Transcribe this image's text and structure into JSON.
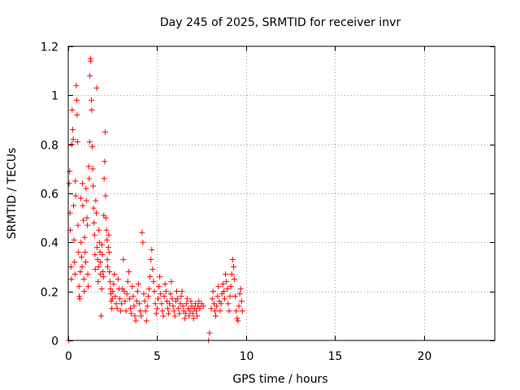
{
  "chart_data": {
    "type": "scatter",
    "title": "Day 245 of 2025, SRMTID for receiver invr",
    "xlabel": "GPS time / hours",
    "ylabel": "SRMTID / TECUs",
    "xlim": [
      0,
      24
    ],
    "ylim": [
      0,
      1.2
    ],
    "x_ticks": [
      0,
      5,
      10,
      15,
      20
    ],
    "x_tick_labels": [
      "0",
      "5",
      "10",
      "15",
      "20"
    ],
    "y_ticks": [
      0,
      0.2,
      0.4,
      0.6,
      0.8,
      1.0,
      1.2
    ],
    "y_tick_labels": [
      "0",
      "0.2",
      "0.4",
      "0.6",
      "0.8",
      "1",
      "1.2"
    ],
    "grid": true,
    "marker": "+",
    "color": "#ff0000",
    "series": [
      {
        "name": "SRMTID",
        "points": [
          [
            0.02,
            0.0
          ],
          [
            0.05,
            0.64
          ],
          [
            0.08,
            0.69
          ],
          [
            0.1,
            0.52
          ],
          [
            0.12,
            0.45
          ],
          [
            0.15,
            0.3
          ],
          [
            0.18,
            0.25
          ],
          [
            0.2,
            0.8
          ],
          [
            0.22,
            0.94
          ],
          [
            0.25,
            0.86
          ],
          [
            0.28,
            0.82
          ],
          [
            0.3,
            0.55
          ],
          [
            0.32,
            0.41
          ],
          [
            0.35,
            0.32
          ],
          [
            0.38,
            0.27
          ],
          [
            0.4,
            0.65
          ],
          [
            0.42,
            0.59
          ],
          [
            0.45,
            1.04
          ],
          [
            0.48,
            0.98
          ],
          [
            0.5,
            0.92
          ],
          [
            0.52,
            0.81
          ],
          [
            0.55,
            0.47
          ],
          [
            0.58,
            0.36
          ],
          [
            0.6,
            0.22
          ],
          [
            0.62,
            0.18
          ],
          [
            0.65,
            0.17
          ],
          [
            0.68,
            0.28
          ],
          [
            0.7,
            0.58
          ],
          [
            0.72,
            0.4
          ],
          [
            0.75,
            0.34
          ],
          [
            0.78,
            0.3
          ],
          [
            0.8,
            0.64
          ],
          [
            0.82,
            0.55
          ],
          [
            0.85,
            0.49
          ],
          [
            0.88,
            0.25
          ],
          [
            0.9,
            0.2
          ],
          [
            0.92,
            0.42
          ],
          [
            0.95,
            0.36
          ],
          [
            0.98,
            0.32
          ],
          [
            1.0,
            0.62
          ],
          [
            1.02,
            0.57
          ],
          [
            1.05,
            0.5
          ],
          [
            1.08,
            0.47
          ],
          [
            1.1,
            0.27
          ],
          [
            1.12,
            0.22
          ],
          [
            1.15,
            0.71
          ],
          [
            1.18,
            0.66
          ],
          [
            1.2,
            0.81
          ],
          [
            1.22,
            1.08
          ],
          [
            1.25,
            1.15
          ],
          [
            1.27,
            1.14
          ],
          [
            1.3,
            0.98
          ],
          [
            1.32,
            0.94
          ],
          [
            1.35,
            0.79
          ],
          [
            1.38,
            0.7
          ],
          [
            1.4,
            0.63
          ],
          [
            1.42,
            0.54
          ],
          [
            1.45,
            0.48
          ],
          [
            1.48,
            0.43
          ],
          [
            1.5,
            0.35
          ],
          [
            1.52,
            0.29
          ],
          [
            1.55,
            0.57
          ],
          [
            1.58,
            0.52
          ],
          [
            1.6,
            1.03
          ],
          [
            1.62,
            0.38
          ],
          [
            1.65,
            0.33
          ],
          [
            1.68,
            0.24
          ],
          [
            1.7,
            0.3
          ],
          [
            1.72,
            0.45
          ],
          [
            1.75,
            0.4
          ],
          [
            1.78,
            0.36
          ],
          [
            1.8,
            0.32
          ],
          [
            1.82,
            0.27
          ],
          [
            1.85,
            0.1
          ],
          [
            1.88,
            0.21
          ],
          [
            1.9,
            0.39
          ],
          [
            1.92,
            0.35
          ],
          [
            1.95,
            0.28
          ],
          [
            1.98,
            0.26
          ],
          [
            2.0,
            0.51
          ],
          [
            2.02,
            0.66
          ],
          [
            2.05,
            0.73
          ],
          [
            2.08,
            0.85
          ],
          [
            2.1,
            0.59
          ],
          [
            2.12,
            0.5
          ],
          [
            2.15,
            0.45
          ],
          [
            2.18,
            0.41
          ],
          [
            2.2,
            0.33
          ],
          [
            2.22,
            0.3
          ],
          [
            2.25,
            0.38
          ],
          [
            2.28,
            0.43
          ],
          [
            2.3,
            0.36
          ],
          [
            2.32,
            0.28
          ],
          [
            2.35,
            0.24
          ],
          [
            2.38,
            0.21
          ],
          [
            2.4,
            0.19
          ],
          [
            2.42,
            0.16
          ],
          [
            2.45,
            0.13
          ],
          [
            2.48,
            0.17
          ],
          [
            2.5,
            0.2
          ],
          [
            2.55,
            0.23
          ],
          [
            2.6,
            0.27
          ],
          [
            2.65,
            0.18
          ],
          [
            2.7,
            0.15
          ],
          [
            2.75,
            0.13
          ],
          [
            2.8,
            0.25
          ],
          [
            2.85,
            0.21
          ],
          [
            2.9,
            0.17
          ],
          [
            2.95,
            0.12
          ],
          [
            3.0,
            0.15
          ],
          [
            3.05,
            0.21
          ],
          [
            3.1,
            0.33
          ],
          [
            3.15,
            0.2
          ],
          [
            3.2,
            0.16
          ],
          [
            3.25,
            0.12
          ],
          [
            3.3,
            0.19
          ],
          [
            3.35,
            0.24
          ],
          [
            3.4,
            0.28
          ],
          [
            3.45,
            0.17
          ],
          [
            3.5,
            0.13
          ],
          [
            3.55,
            0.11
          ],
          [
            3.6,
            0.22
          ],
          [
            3.65,
            0.18
          ],
          [
            3.7,
            0.14
          ],
          [
            3.75,
            0.1
          ],
          [
            3.8,
            0.08
          ],
          [
            3.85,
            0.16
          ],
          [
            3.9,
            0.2
          ],
          [
            3.95,
            0.23
          ],
          [
            4.0,
            0.15
          ],
          [
            4.05,
            0.12
          ],
          [
            4.1,
            0.1
          ],
          [
            4.15,
            0.44
          ],
          [
            4.2,
            0.4
          ],
          [
            4.25,
            0.19
          ],
          [
            4.3,
            0.16
          ],
          [
            4.35,
            0.12
          ],
          [
            4.4,
            0.08
          ],
          [
            4.45,
            0.14
          ],
          [
            4.5,
            0.18
          ],
          [
            4.55,
            0.21
          ],
          [
            4.6,
            0.26
          ],
          [
            4.65,
            0.33
          ],
          [
            4.7,
            0.37
          ],
          [
            4.75,
            0.29
          ],
          [
            4.8,
            0.24
          ],
          [
            4.85,
            0.2
          ],
          [
            4.9,
            0.15
          ],
          [
            4.95,
            0.11
          ],
          [
            5.0,
            0.13
          ],
          [
            5.05,
            0.17
          ],
          [
            5.1,
            0.22
          ],
          [
            5.15,
            0.26
          ],
          [
            5.2,
            0.19
          ],
          [
            5.25,
            0.15
          ],
          [
            5.3,
            0.12
          ],
          [
            5.35,
            0.1
          ],
          [
            5.4,
            0.18
          ],
          [
            5.45,
            0.23
          ],
          [
            5.5,
            0.2
          ],
          [
            5.55,
            0.16
          ],
          [
            5.6,
            0.13
          ],
          [
            5.65,
            0.11
          ],
          [
            5.7,
            0.15
          ],
          [
            5.75,
            0.19
          ],
          [
            5.8,
            0.24
          ],
          [
            5.85,
            0.17
          ],
          [
            5.9,
            0.14
          ],
          [
            5.95,
            0.12
          ],
          [
            6.0,
            0.1
          ],
          [
            6.05,
            0.16
          ],
          [
            6.1,
            0.2
          ],
          [
            6.15,
            0.17
          ],
          [
            6.2,
            0.13
          ],
          [
            6.25,
            0.11
          ],
          [
            6.3,
            0.15
          ],
          [
            6.35,
            0.18
          ],
          [
            6.4,
            0.2
          ],
          [
            6.45,
            0.14
          ],
          [
            6.5,
            0.12
          ],
          [
            6.55,
            0.09
          ],
          [
            6.6,
            0.11
          ],
          [
            6.65,
            0.15
          ],
          [
            6.7,
            0.17
          ],
          [
            6.75,
            0.13
          ],
          [
            6.8,
            0.1
          ],
          [
            6.85,
            0.12
          ],
          [
            6.9,
            0.16
          ],
          [
            6.95,
            0.14
          ],
          [
            7.0,
            0.11
          ],
          [
            7.05,
            0.09
          ],
          [
            7.1,
            0.13
          ],
          [
            7.15,
            0.15
          ],
          [
            7.2,
            0.12
          ],
          [
            7.25,
            0.1
          ],
          [
            7.3,
            0.14
          ],
          [
            7.35,
            0.16
          ],
          [
            7.4,
            0.13
          ],
          [
            7.5,
            0.15
          ],
          [
            7.6,
            0.14
          ],
          [
            7.9,
            0.0
          ],
          [
            7.95,
            0.03
          ],
          [
            8.05,
            0.13
          ],
          [
            8.1,
            0.17
          ],
          [
            8.15,
            0.2
          ],
          [
            8.2,
            0.15
          ],
          [
            8.25,
            0.12
          ],
          [
            8.3,
            0.1
          ],
          [
            8.35,
            0.14
          ],
          [
            8.4,
            0.18
          ],
          [
            8.45,
            0.22
          ],
          [
            8.5,
            0.16
          ],
          [
            8.55,
            0.12
          ],
          [
            8.6,
            0.15
          ],
          [
            8.65,
            0.19
          ],
          [
            8.7,
            0.23
          ],
          [
            8.75,
            0.2
          ],
          [
            8.8,
            0.17
          ],
          [
            8.85,
            0.27
          ],
          [
            8.9,
            0.24
          ],
          [
            8.95,
            0.21
          ],
          [
            9.0,
            0.15
          ],
          [
            9.05,
            0.12
          ],
          [
            9.1,
            0.18
          ],
          [
            9.15,
            0.22
          ],
          [
            9.2,
            0.27
          ],
          [
            9.25,
            0.33
          ],
          [
            9.3,
            0.3
          ],
          [
            9.35,
            0.25
          ],
          [
            9.4,
            0.18
          ],
          [
            9.45,
            0.12
          ],
          [
            9.5,
            0.09
          ],
          [
            9.55,
            0.08
          ],
          [
            9.6,
            0.14
          ],
          [
            9.65,
            0.19
          ],
          [
            9.7,
            0.21
          ],
          [
            9.75,
            0.16
          ],
          [
            9.8,
            0.12
          ]
        ]
      }
    ]
  }
}
